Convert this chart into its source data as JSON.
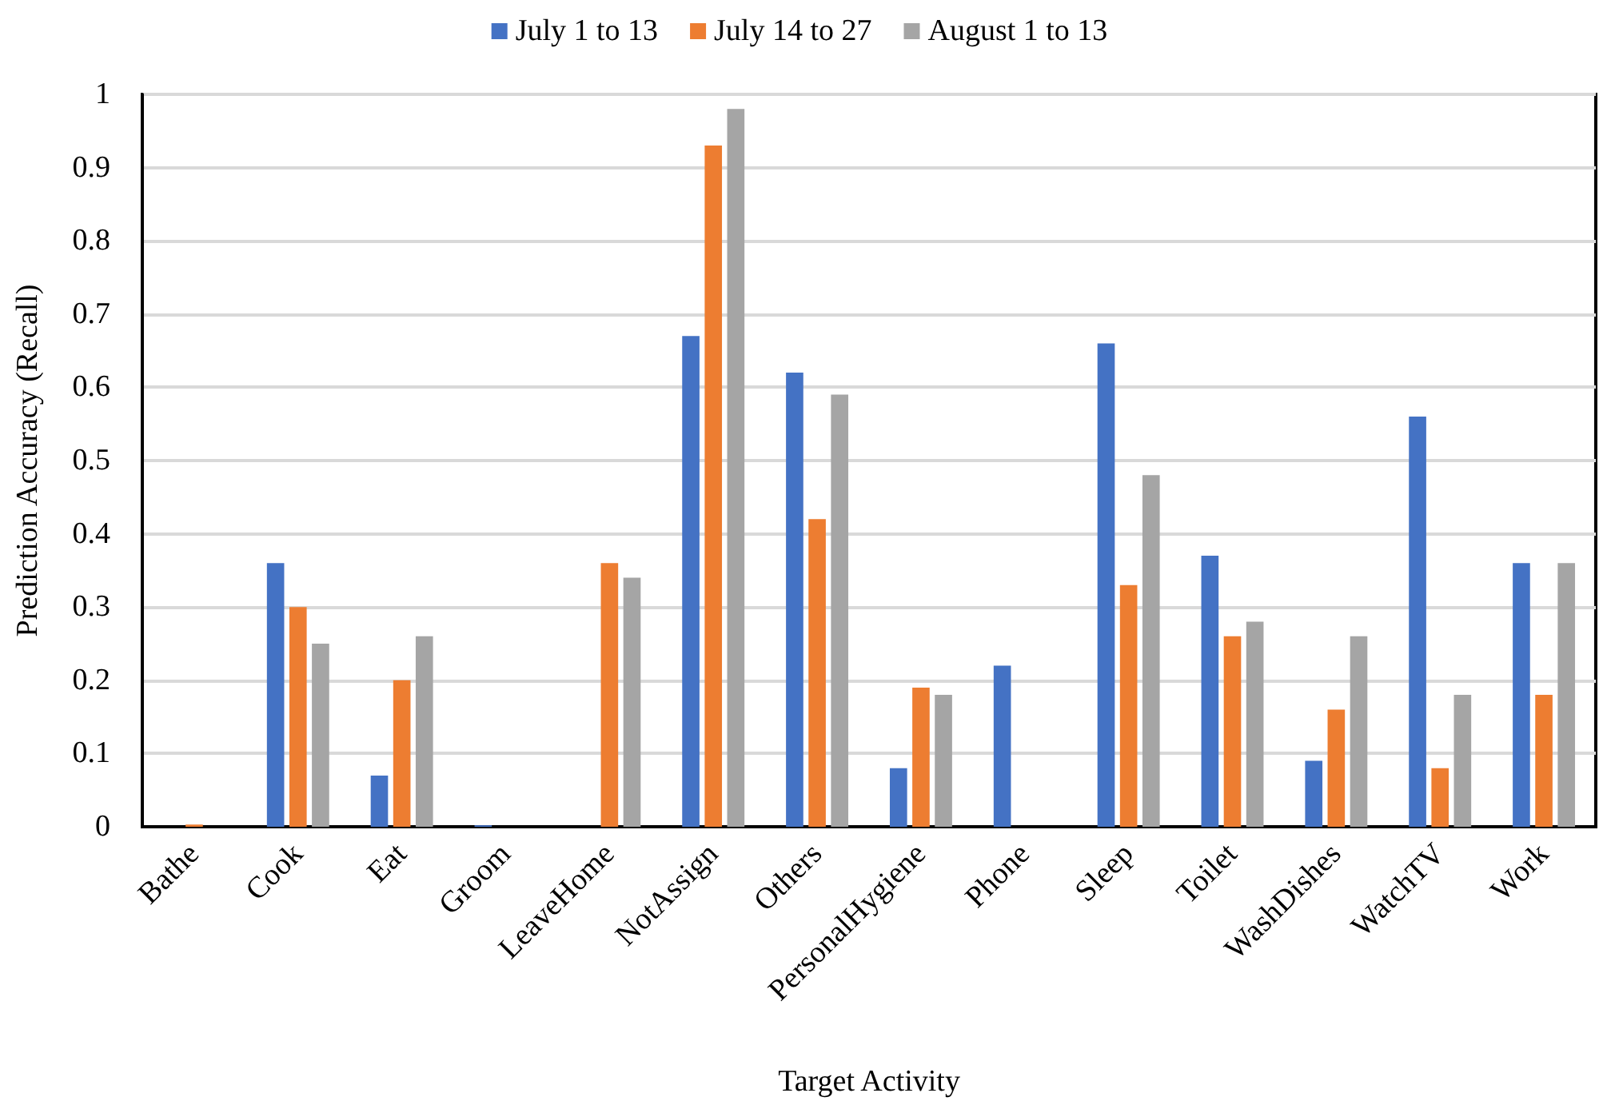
{
  "chart_data": {
    "type": "bar",
    "xlabel": "Target Activity",
    "ylabel": "Prediction Accuracy (Recall)",
    "categories": [
      "Bathe",
      "Cook",
      "Eat",
      "Groom",
      "LeaveHome",
      "NotAssign",
      "Others",
      "PersonalHygiene",
      "Phone",
      "Sleep",
      "Toilet",
      "WashDishes",
      "WatchTV",
      "Work"
    ],
    "series": [
      {
        "name": "July 1 to 13",
        "color": "#4472c4",
        "values": [
          0,
          0.36,
          0.07,
          0.002,
          0,
          0.67,
          0.62,
          0.08,
          0.22,
          0.66,
          0.37,
          0.09,
          0.56,
          0.36
        ]
      },
      {
        "name": "July 14 to 27",
        "color": "#ed7d31",
        "values": [
          0.003,
          0.3,
          0.2,
          0,
          0.36,
          0.93,
          0.42,
          0.19,
          0,
          0.33,
          0.26,
          0.16,
          0.08,
          0.18
        ]
      },
      {
        "name": "August 1 to 13",
        "color": "#a5a5a5",
        "values": [
          0,
          0.25,
          0.26,
          0,
          0.34,
          0.98,
          0.59,
          0.18,
          0,
          0.48,
          0.28,
          0.26,
          0.18,
          0.36
        ]
      }
    ],
    "ylim": [
      0,
      1
    ],
    "yticks": [
      0,
      0.1,
      0.2,
      0.3,
      0.4,
      0.5,
      0.6,
      0.7,
      0.8,
      0.9,
      1
    ],
    "grid": "y",
    "legend": "top"
  }
}
